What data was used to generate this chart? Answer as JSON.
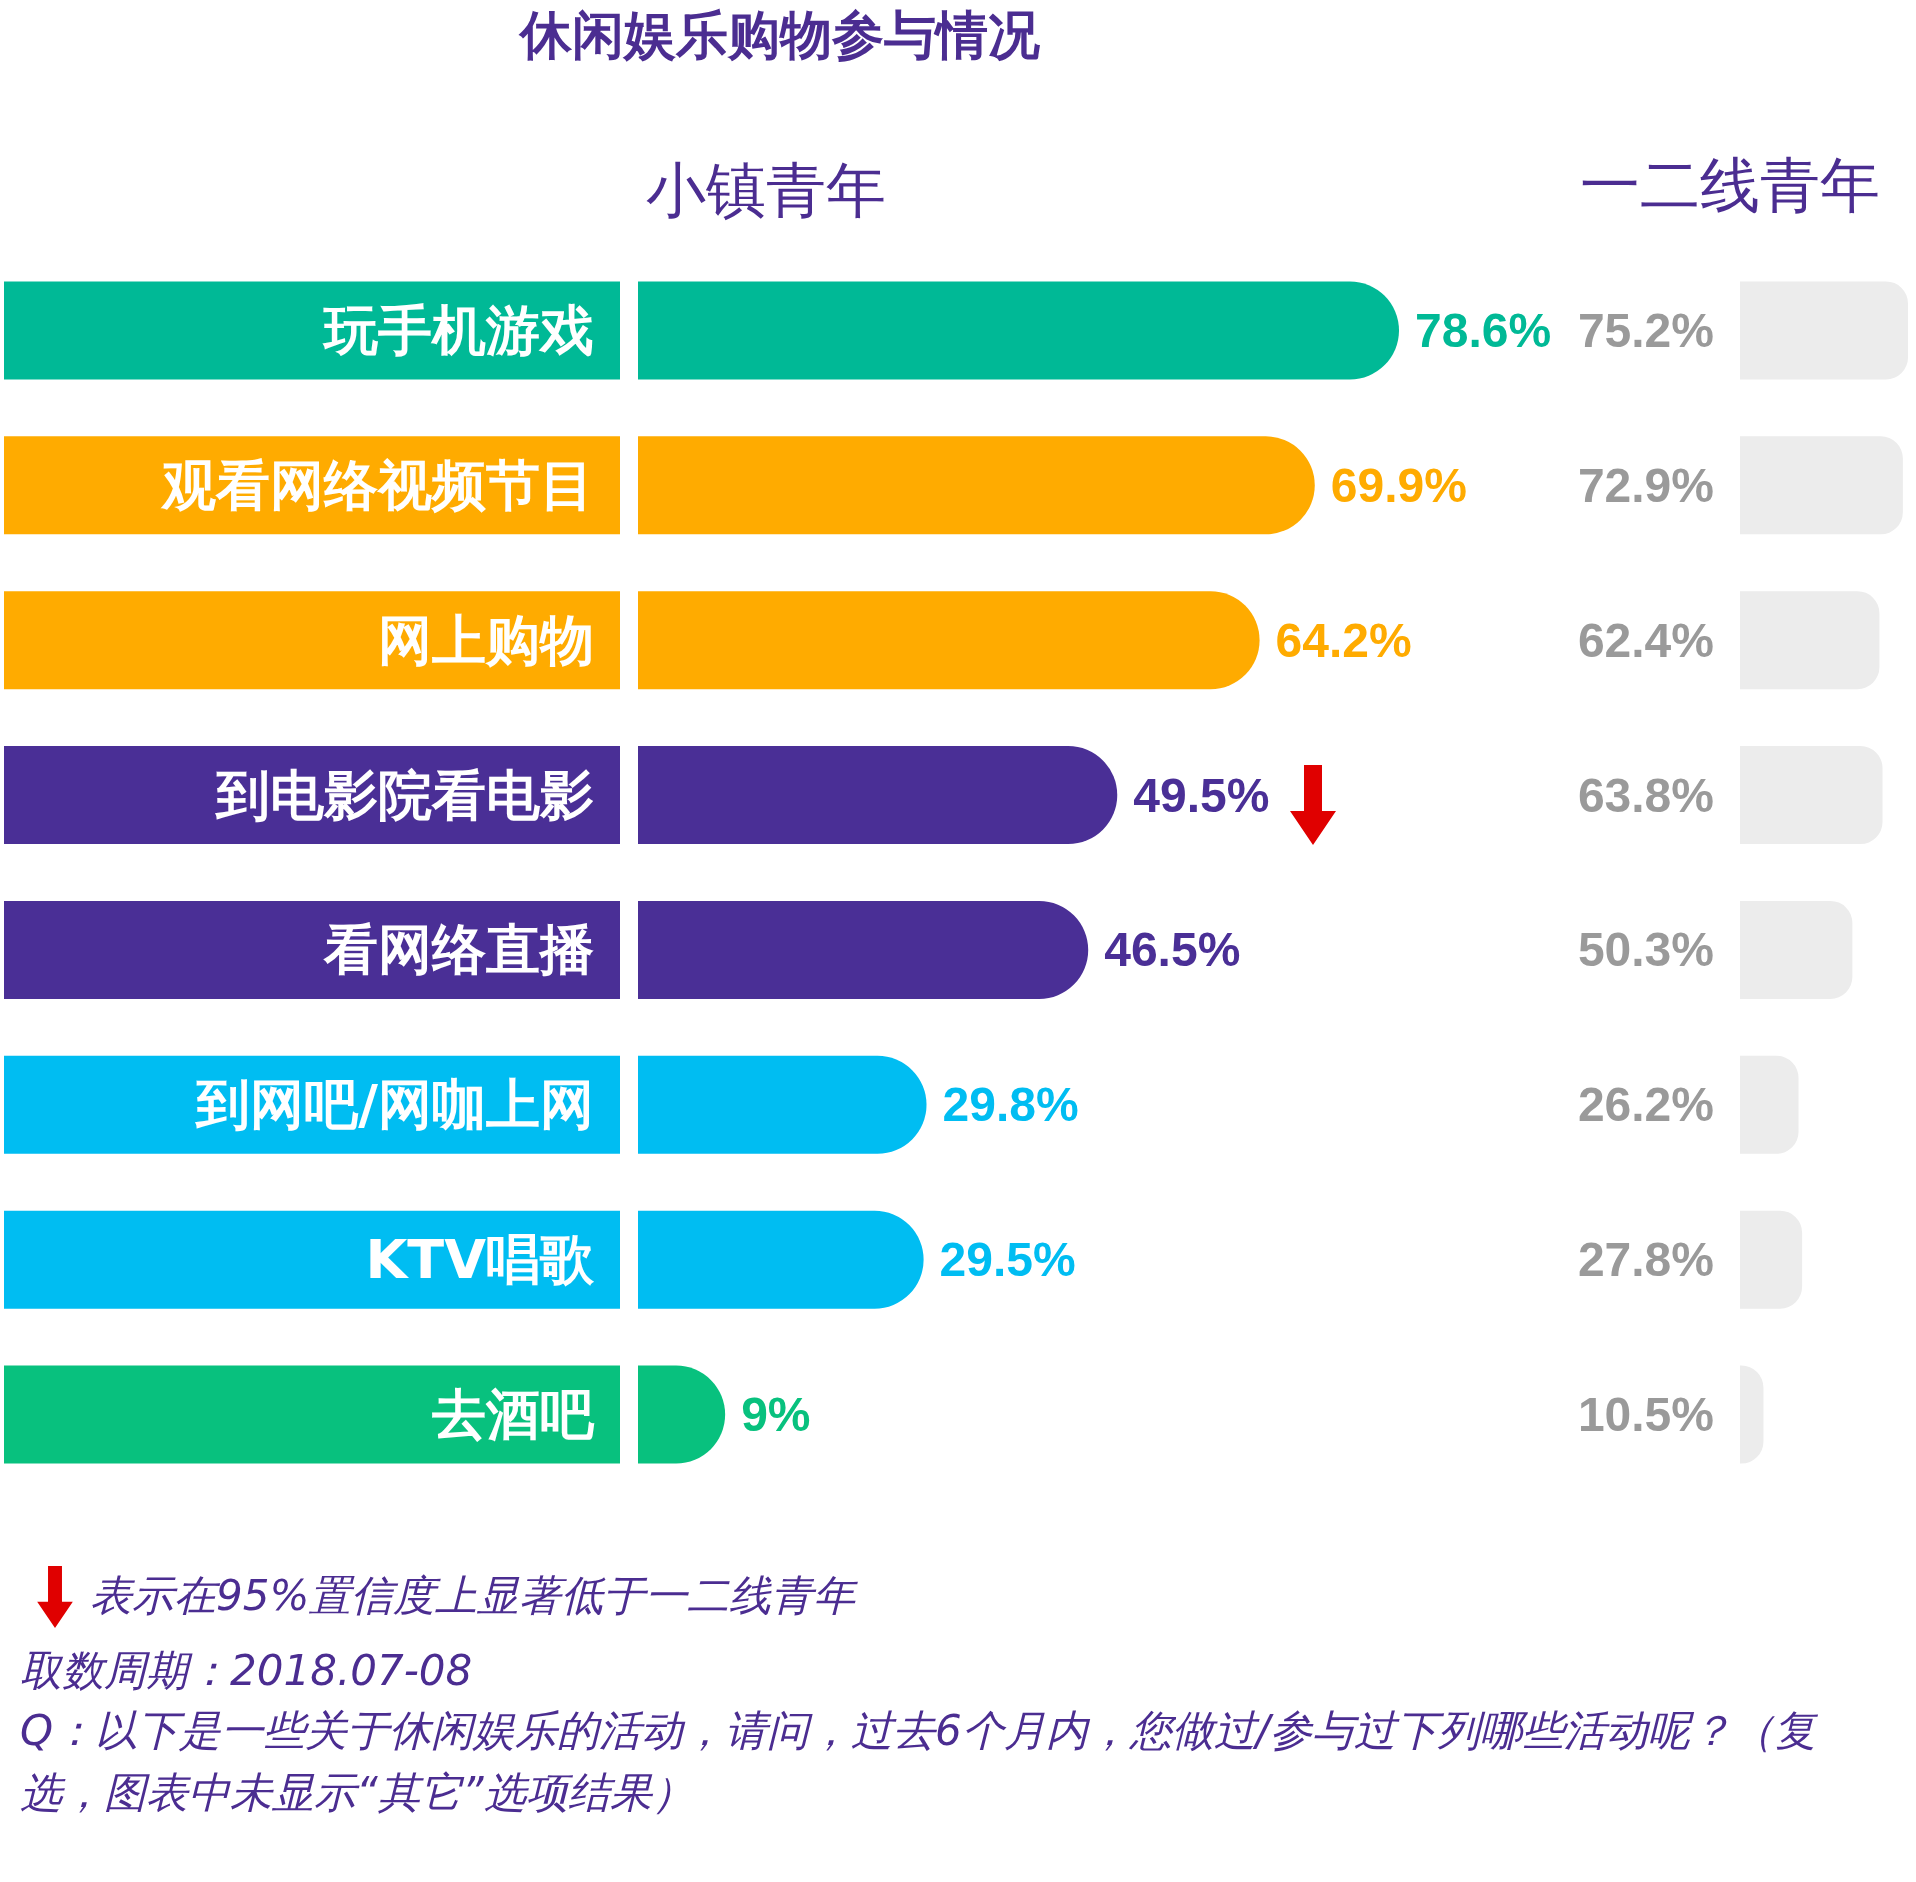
{
  "chart_data": [
    {
      "type": "bar",
      "orientation": "horizontal",
      "title": "休闲娱乐购物参与情况",
      "categories": [
        "玩手机游戏",
        "观看网络视频节目",
        "网上购物",
        "到电影院看电影",
        "看网络直播",
        "到网吧/网咖上网",
        "KTV唱歌",
        "去酒吧"
      ],
      "series": [
        {
          "name": "小镇青年",
          "colors": [
            "#00b996",
            "#ffab00",
            "#ffab00",
            "#4a2f96",
            "#4a2f96",
            "#00bdf2",
            "#00bdf2",
            "#08c17e"
          ],
          "values": [
            78.6,
            69.9,
            64.2,
            49.5,
            46.5,
            29.8,
            29.5,
            9
          ],
          "value_labels": [
            "78.6%",
            "69.9%",
            "64.2%",
            "49.5%",
            "46.5%",
            "29.8%",
            "29.5%",
            "9%"
          ]
        }
      ],
      "grid": false,
      "legend": false,
      "annotations": [
        "表示在95%置信度上显著低于一二线青年",
        "取数周期：2018.07-08",
        "Q：以下是一些关于休闲娱乐的活动，请问，过去6个月内，您做过/参与过下列哪些活动呢？（复选，图表中未显示“其它”选项结果）"
      ]
    },
    {
      "type": "bar",
      "orientation": "horizontal",
      "title": "一二线青年",
      "categories": [
        null,
        null,
        null,
        null,
        null,
        null,
        null,
        null
      ],
      "series": [
        {
          "color": "#ececec",
          "values": [
            75.2,
            72.9,
            62.4,
            63.8,
            50.3,
            26.2,
            27.8,
            10.5
          ],
          "value_labels": [
            "75.2%",
            "72.9%",
            "62.4%",
            "63.8%",
            "50.3%",
            "26.2%",
            "27.8%",
            "10.5%"
          ]
        }
      ]
    }
  ]
}
